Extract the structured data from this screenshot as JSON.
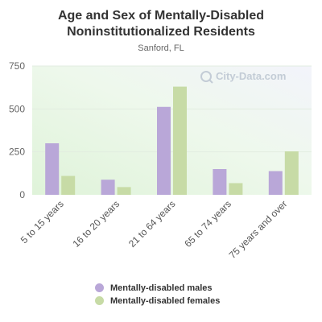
{
  "page": {
    "title_line1": "Age and Sex of Mentally-Disabled",
    "title_line2": "Noninstitutionalized Residents",
    "subtitle": "Sanford, FL",
    "watermark": "City-Data.com"
  },
  "chart_data": {
    "type": "bar",
    "title": "Age and Sex of Mentally-Disabled Noninstitutionalized Residents",
    "subtitle": "Sanford, FL",
    "categories": [
      "5 to 15 years",
      "16 to 20 years",
      "21 to 64 years",
      "65 to 74 years",
      "75 years and over"
    ],
    "series": [
      {
        "name": "Mentally-disabled males",
        "color": "#b9a7d8",
        "values": [
          300,
          88,
          512,
          150,
          138
        ]
      },
      {
        "name": "Mentally-disabled females",
        "color": "#c7dba6",
        "values": [
          110,
          45,
          630,
          68,
          253
        ]
      }
    ],
    "yticks": [
      0,
      250,
      500,
      750
    ],
    "ylim": [
      0,
      750
    ],
    "grid": true,
    "legend_position": "bottom"
  }
}
